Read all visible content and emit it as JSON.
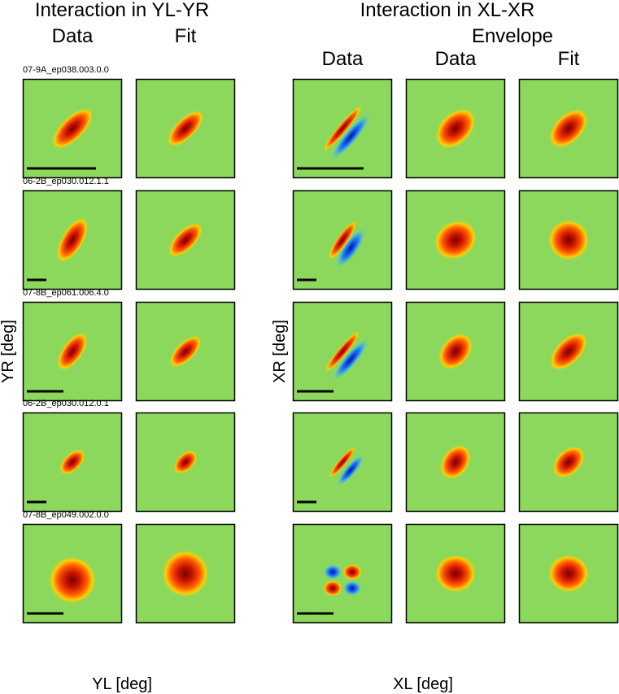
{
  "titles": [
    "Interaction in YL-YR",
    "Interaction in XL-XR"
  ],
  "columns": {
    "yl_data": "Data",
    "yl_fit": "Fit",
    "envelope": "Envelope",
    "xl_data": "Data",
    "env_data": "Data",
    "env_fit": "Fit"
  },
  "rows": [
    "07-9A_ep038.003.0.0",
    "06-2B_ep030.012.1.1",
    "07-8B_ep061.006.4.0",
    "06-2B_ep030.012.0.1",
    "07-8B_ep049.002.0.0"
  ],
  "axis_labels": {
    "yl": "YL [deg]",
    "yr": "YR [deg]",
    "xr": "XR [deg]",
    "xl": "XL [deg]"
  }
}
